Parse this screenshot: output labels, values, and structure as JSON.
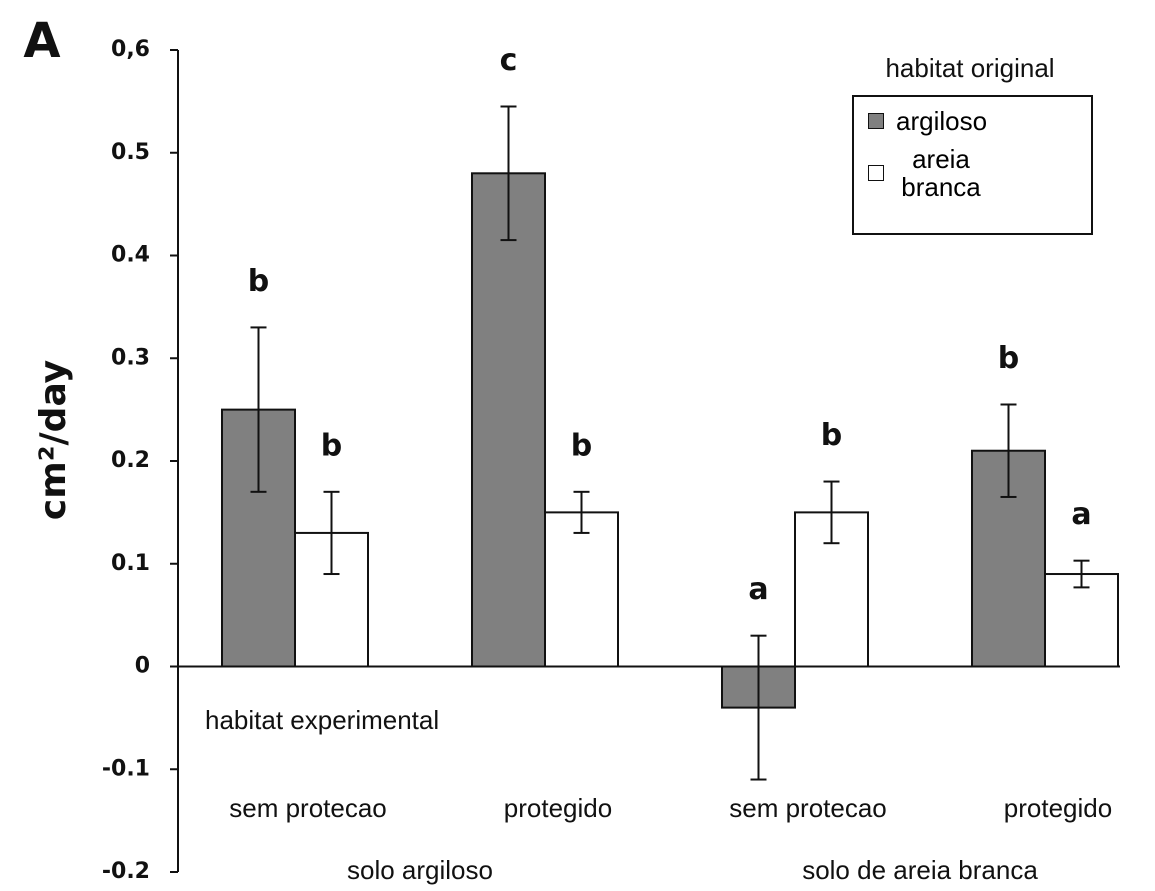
{
  "chart_data": {
    "type": "bar",
    "panel_label": "A",
    "ylabel": "cm²/day",
    "categories": [
      "sem protecao",
      "protegido",
      "sem protecao",
      "protegido"
    ],
    "groups": [
      "solo argiloso",
      "solo de areia branca"
    ],
    "annotation": "habitat experimental",
    "legend_title": "habitat original",
    "legend": "upper right",
    "series": [
      {
        "name": "argiloso",
        "color": "#808080",
        "values": [
          0.25,
          0.48,
          -0.04,
          0.21
        ],
        "errors": [
          0.08,
          0.065,
          0.07,
          0.045
        ],
        "letters": [
          "b",
          "c",
          "a",
          "b"
        ]
      },
      {
        "name": "areia branca",
        "color": "#ffffff",
        "values": [
          0.13,
          0.15,
          0.15,
          0.09
        ],
        "errors": [
          0.04,
          0.02,
          0.03,
          0.013
        ],
        "letters": [
          "b",
          "b",
          "b",
          "a"
        ]
      }
    ],
    "ylim": [
      -0.2,
      0.6
    ],
    "yticks": [
      -0.2,
      -0.1,
      0,
      0.1,
      0.2,
      0.3,
      0.4,
      0.5,
      {
        "value": 0.6,
        "label": "0,6"
      }
    ]
  }
}
